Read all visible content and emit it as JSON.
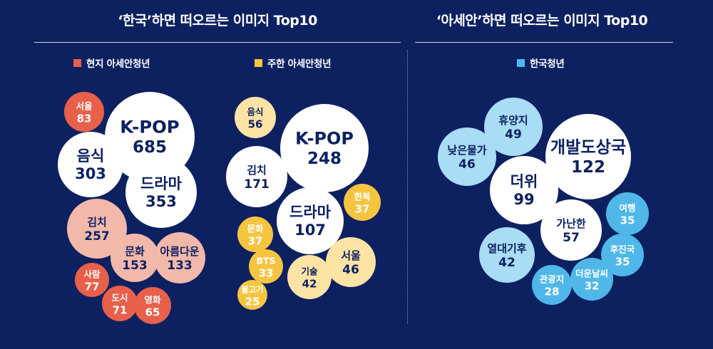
{
  "left_title": "‘한국’하면 떠오르는 이미지 Top10",
  "right_title": "‘아세안’하면 떠오르는 이미지 Top10",
  "chart_data": [
    {
      "type": "bubble",
      "title": "‘한국’하면 떠오르는 이미지 Top10",
      "series": [
        {
          "name": "현지 아세안청년",
          "color": "#e8604a",
          "categories": [
            "K-POP",
            "드라마",
            "음식",
            "김치",
            "문화",
            "아름다운",
            "서울",
            "사람",
            "영화",
            "도시"
          ],
          "values": [
            685,
            353,
            303,
            257,
            153,
            133,
            83,
            77,
            65,
            71
          ]
        },
        {
          "name": "주한 아세안청년",
          "color": "#f5c542",
          "categories": [
            "K-POP",
            "김치",
            "드라마",
            "음식",
            "서울",
            "기술",
            "한복",
            "문화",
            "BTS",
            "불고기"
          ],
          "values": [
            248,
            171,
            107,
            56,
            46,
            42,
            37,
            37,
            33,
            25
          ]
        }
      ]
    },
    {
      "type": "bubble",
      "title": "‘아세안’하면 떠오르는 이미지 Top10",
      "series": [
        {
          "name": "한국청년",
          "color": "#4fb8e8",
          "categories": [
            "개발도상국",
            "더위",
            "가난한",
            "휴양지",
            "낮은물가",
            "열대기후",
            "여행",
            "후진국",
            "더운날씨",
            "관광지"
          ],
          "values": [
            122,
            99,
            57,
            49,
            46,
            42,
            35,
            35,
            32,
            28
          ]
        }
      ]
    }
  ]
}
